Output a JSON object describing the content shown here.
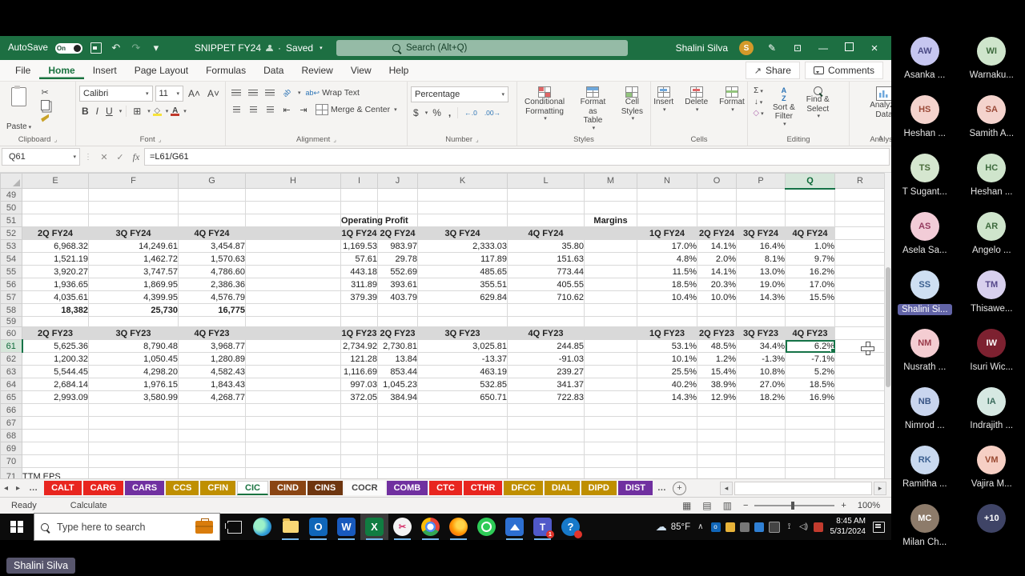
{
  "window": {
    "autosave": "AutoSave",
    "autosave_state": "On",
    "title": "SNIPPET FY24",
    "saved_status": "Saved",
    "search_placeholder": "Search (Alt+Q)",
    "user": "Shalini Silva",
    "user_initial": "S"
  },
  "menu": {
    "tabs": [
      "File",
      "Home",
      "Insert",
      "Page Layout",
      "Formulas",
      "Data",
      "Review",
      "View",
      "Help"
    ],
    "active": "Home",
    "share": "Share",
    "comments": "Comments"
  },
  "ribbon": {
    "paste": "Paste",
    "font_name": "Calibri",
    "font_size": "11",
    "bold": "B",
    "italic": "I",
    "underline": "U",
    "wrap_text": "Wrap Text",
    "merge_center": "Merge & Center",
    "number_format": "Percentage",
    "btn_conditional": "Conditional\nFormatting",
    "btn_format_table": "Format as\nTable",
    "btn_cell_styles": "Cell\nStyles",
    "btn_insert": "Insert",
    "btn_delete": "Delete",
    "btn_format": "Format",
    "btn_sort": "Sort &\nFilter",
    "btn_find": "Find &\nSelect",
    "btn_analyze": "Analyze\nData",
    "grp_clipboard": "Clipboard",
    "grp_font": "Font",
    "grp_alignment": "Alignment",
    "grp_number": "Number",
    "grp_styles": "Styles",
    "grp_cells": "Cells",
    "grp_editing": "Editing",
    "grp_analysis": "Analysis"
  },
  "formula_bar": {
    "name_box": "Q61",
    "formula": "=L61/G61"
  },
  "grid": {
    "columns": [
      "E",
      "F",
      "G",
      "H",
      "I",
      "J",
      "K",
      "L",
      "M",
      "N",
      "O",
      "P",
      "Q",
      "R"
    ],
    "selected_col": "Q",
    "selected_row": "61",
    "rows": [
      {
        "n": "49"
      },
      {
        "n": "50"
      },
      {
        "n": "51",
        "cells": [
          [
            "I",
            "Operating Profit",
            "c"
          ],
          [
            "M",
            "Margins",
            "c"
          ]
        ]
      },
      {
        "n": "52",
        "band": true,
        "cells": [
          [
            "E",
            "2Q FY24"
          ],
          [
            "F",
            "3Q FY24"
          ],
          [
            "G",
            "4Q FY24"
          ],
          [
            "I",
            "1Q FY24"
          ],
          [
            "J",
            "2Q FY24"
          ],
          [
            "K",
            "3Q FY24"
          ],
          [
            "L",
            "4Q FY24"
          ],
          [
            "N",
            "1Q FY24"
          ],
          [
            "O",
            "2Q FY24"
          ],
          [
            "P",
            "3Q FY24"
          ],
          [
            "Q",
            "4Q FY24"
          ]
        ]
      },
      {
        "n": "53",
        "cells": [
          [
            "E",
            "6,968.32"
          ],
          [
            "F",
            "14,249.61"
          ],
          [
            "G",
            "3,454.87"
          ],
          [
            "I",
            "1,169.53"
          ],
          [
            "J",
            "983.97"
          ],
          [
            "K",
            "2,333.03"
          ],
          [
            "L",
            "35.80"
          ],
          [
            "N",
            "17.0%"
          ],
          [
            "O",
            "14.1%"
          ],
          [
            "P",
            "16.4%"
          ],
          [
            "Q",
            "1.0%"
          ]
        ]
      },
      {
        "n": "54",
        "cells": [
          [
            "E",
            "1,521.19"
          ],
          [
            "F",
            "1,462.72"
          ],
          [
            "G",
            "1,570.63"
          ],
          [
            "I",
            "57.61"
          ],
          [
            "J",
            "29.78"
          ],
          [
            "K",
            "117.89"
          ],
          [
            "L",
            "151.63"
          ],
          [
            "N",
            "4.8%"
          ],
          [
            "O",
            "2.0%"
          ],
          [
            "P",
            "8.1%"
          ],
          [
            "Q",
            "9.7%"
          ]
        ]
      },
      {
        "n": "55",
        "cells": [
          [
            "E",
            "3,920.27"
          ],
          [
            "F",
            "3,747.57"
          ],
          [
            "G",
            "4,786.60"
          ],
          [
            "I",
            "443.18"
          ],
          [
            "J",
            "552.69"
          ],
          [
            "K",
            "485.65"
          ],
          [
            "L",
            "773.44"
          ],
          [
            "N",
            "11.5%"
          ],
          [
            "O",
            "14.1%"
          ],
          [
            "P",
            "13.0%"
          ],
          [
            "Q",
            "16.2%"
          ]
        ]
      },
      {
        "n": "56",
        "cells": [
          [
            "E",
            "1,936.65"
          ],
          [
            "F",
            "1,869.95"
          ],
          [
            "G",
            "2,386.36"
          ],
          [
            "I",
            "311.89"
          ],
          [
            "J",
            "393.61"
          ],
          [
            "K",
            "355.51"
          ],
          [
            "L",
            "405.55"
          ],
          [
            "N",
            "18.5%"
          ],
          [
            "O",
            "20.3%"
          ],
          [
            "P",
            "19.0%"
          ],
          [
            "Q",
            "17.0%"
          ]
        ]
      },
      {
        "n": "57",
        "cells": [
          [
            "E",
            "4,035.61"
          ],
          [
            "F",
            "4,399.95"
          ],
          [
            "G",
            "4,576.79"
          ],
          [
            "I",
            "379.39"
          ],
          [
            "J",
            "403.79"
          ],
          [
            "K",
            "629.84"
          ],
          [
            "L",
            "710.62"
          ],
          [
            "N",
            "10.4%"
          ],
          [
            "O",
            "10.0%"
          ],
          [
            "P",
            "14.3%"
          ],
          [
            "Q",
            "15.5%"
          ]
        ]
      },
      {
        "n": "58",
        "bold": true,
        "cells": [
          [
            "E",
            "18,382"
          ],
          [
            "F",
            "25,730"
          ],
          [
            "G",
            "16,775"
          ]
        ]
      },
      {
        "n": "59",
        "h": 10
      },
      {
        "n": "60",
        "band": true,
        "cells": [
          [
            "E",
            "2Q FY23"
          ],
          [
            "F",
            "3Q FY23"
          ],
          [
            "G",
            "4Q FY23"
          ],
          [
            "I",
            "1Q FY23"
          ],
          [
            "J",
            "2Q FY23"
          ],
          [
            "K",
            "3Q FY23"
          ],
          [
            "L",
            "4Q FY23"
          ],
          [
            "N",
            "1Q FY23"
          ],
          [
            "O",
            "2Q FY23"
          ],
          [
            "P",
            "3Q FY23"
          ],
          [
            "Q",
            "4Q FY23"
          ]
        ]
      },
      {
        "n": "61",
        "cells": [
          [
            "E",
            "5,625.36"
          ],
          [
            "F",
            "8,790.48"
          ],
          [
            "G",
            "3,968.77"
          ],
          [
            "I",
            "2,734.92"
          ],
          [
            "J",
            "2,730.81"
          ],
          [
            "K",
            "3,025.81"
          ],
          [
            "L",
            "244.85"
          ],
          [
            "N",
            "53.1%"
          ],
          [
            "O",
            "48.5%"
          ],
          [
            "P",
            "34.4%"
          ],
          [
            "Q",
            "6.2%"
          ]
        ]
      },
      {
        "n": "62",
        "cells": [
          [
            "E",
            "1,200.32"
          ],
          [
            "F",
            "1,050.45"
          ],
          [
            "G",
            "1,280.89"
          ],
          [
            "I",
            "121.28"
          ],
          [
            "J",
            "13.84"
          ],
          [
            "K",
            "-13.37"
          ],
          [
            "L",
            "-91.03"
          ],
          [
            "N",
            "10.1%"
          ],
          [
            "O",
            "1.2%"
          ],
          [
            "P",
            "-1.3%"
          ],
          [
            "Q",
            "-7.1%"
          ]
        ]
      },
      {
        "n": "63",
        "cells": [
          [
            "E",
            "5,544.45"
          ],
          [
            "F",
            "4,298.20"
          ],
          [
            "G",
            "4,582.43"
          ],
          [
            "I",
            "1,116.69"
          ],
          [
            "J",
            "853.44"
          ],
          [
            "K",
            "463.19"
          ],
          [
            "L",
            "239.27"
          ],
          [
            "N",
            "25.5%"
          ],
          [
            "O",
            "15.4%"
          ],
          [
            "P",
            "10.8%"
          ],
          [
            "Q",
            "5.2%"
          ]
        ]
      },
      {
        "n": "64",
        "cells": [
          [
            "E",
            "2,684.14"
          ],
          [
            "F",
            "1,976.15"
          ],
          [
            "G",
            "1,843.43"
          ],
          [
            "I",
            "997.03"
          ],
          [
            "J",
            "1,045.23"
          ],
          [
            "K",
            "532.85"
          ],
          [
            "L",
            "341.37"
          ],
          [
            "N",
            "40.2%"
          ],
          [
            "O",
            "38.9%"
          ],
          [
            "P",
            "27.0%"
          ],
          [
            "Q",
            "18.5%"
          ]
        ]
      },
      {
        "n": "65",
        "cells": [
          [
            "E",
            "2,993.09"
          ],
          [
            "F",
            "3,580.99"
          ],
          [
            "G",
            "4,268.77"
          ],
          [
            "I",
            "372.05"
          ],
          [
            "J",
            "384.94"
          ],
          [
            "K",
            "650.71"
          ],
          [
            "L",
            "722.83"
          ],
          [
            "N",
            "14.3%"
          ],
          [
            "O",
            "12.9%"
          ],
          [
            "P",
            "18.2%"
          ],
          [
            "Q",
            "16.9%"
          ]
        ]
      },
      {
        "n": "66"
      },
      {
        "n": "67"
      },
      {
        "n": "68"
      },
      {
        "n": "69"
      },
      {
        "n": "70"
      },
      {
        "n": "71",
        "h": 22,
        "cells": [
          [
            "E",
            "TTM EPS",
            "l"
          ]
        ]
      }
    ]
  },
  "sheet_tabs": {
    "nav_ellipsis": "…",
    "tabs": [
      {
        "label": "CALT",
        "bg": "#e8251f",
        "fg": "#ffffff"
      },
      {
        "label": "CARG",
        "bg": "#e8251f",
        "fg": "#ffffff"
      },
      {
        "label": "CARS",
        "bg": "#7030a0",
        "fg": "#ffffff"
      },
      {
        "label": "CCS",
        "bg": "#bf8f00",
        "fg": "#ffffff"
      },
      {
        "label": "CFIN",
        "bg": "#bf8f00",
        "fg": "#ffffff"
      },
      {
        "label": "CIC",
        "active": true
      },
      {
        "label": "CIND",
        "bg": "#8a4513",
        "fg": "#ffffff"
      },
      {
        "label": "CINS",
        "bg": "#6e3610",
        "fg": "#ffffff"
      },
      {
        "label": "COCR",
        "bg": "#fbfbfb",
        "fg": "#444444"
      },
      {
        "label": "COMB",
        "bg": "#7030a0",
        "fg": "#ffffff"
      },
      {
        "label": "CTC",
        "bg": "#e8251f",
        "fg": "#ffffff"
      },
      {
        "label": "CTHR",
        "bg": "#e8251f",
        "fg": "#ffffff"
      },
      {
        "label": "DFCC",
        "bg": "#bf8f00",
        "fg": "#ffffff"
      },
      {
        "label": "DIAL",
        "bg": "#bf8f00",
        "fg": "#ffffff"
      },
      {
        "label": "DIPD",
        "bg": "#bf8f00",
        "fg": "#ffffff"
      },
      {
        "label": "DIST",
        "bg": "#7030a0",
        "fg": "#ffffff"
      }
    ]
  },
  "status_bar": {
    "ready": "Ready",
    "calculate": "Calculate",
    "zoom": "100%"
  },
  "taskbar": {
    "search_placeholder": "Type here to search",
    "temp": "85°F",
    "time": "8:45 AM",
    "date": "5/31/2024"
  },
  "meeting": {
    "presenter_label": "Shalini Silva",
    "participants": [
      {
        "initials": "AW",
        "name": "Asanka ...",
        "bg": "#c6c6f0",
        "fg": "#4a4a85"
      },
      {
        "initials": "WI",
        "name": "Warnaku...",
        "bg": "#cfe5cc",
        "fg": "#3e6b3e"
      },
      {
        "initials": "HS",
        "name": "Heshan ...",
        "bg": "#f4d3cd",
        "fg": "#9a4a38"
      },
      {
        "initials": "SA",
        "name": "Samith A...",
        "bg": "#f4d3cd",
        "fg": "#9a4a38"
      },
      {
        "initials": "TS",
        "name": "T Sugant...",
        "bg": "#d5e6cf",
        "fg": "#4a6b3a"
      },
      {
        "initials": "HC",
        "name": "Heshan ...",
        "bg": "#cfe5cc",
        "fg": "#3e6b3e"
      },
      {
        "initials": "AS",
        "name": "Asela Sa...",
        "bg": "#f2ccd7",
        "fg": "#943a5e"
      },
      {
        "initials": "AR",
        "name": "Angelo ...",
        "bg": "#cfe5cc",
        "fg": "#3e6b3e"
      },
      {
        "initials": "SS",
        "name": "Shalini Si...",
        "bg": "#cedff2",
        "fg": "#3a5f8f",
        "highlight": true
      },
      {
        "initials": "TM",
        "name": "Thisawe...",
        "bg": "#d8d0ee",
        "fg": "#55478a"
      },
      {
        "initials": "NM",
        "name": "Nusrath ...",
        "bg": "#f4cdd2",
        "fg": "#9a3a4a"
      },
      {
        "initials": "IW",
        "name": "Isuri Wic...",
        "bg": "#7d2130",
        "fg": "#ffffff"
      },
      {
        "initials": "NB",
        "name": "Nimrod ...",
        "bg": "#c9d5ee",
        "fg": "#3a5585"
      },
      {
        "initials": "IA",
        "name": "Indrajith ...",
        "bg": "#d6e8e2",
        "fg": "#3a6b5c"
      },
      {
        "initials": "RK",
        "name": "Ramitha ...",
        "bg": "#c9d9ef",
        "fg": "#3a5f8f"
      },
      {
        "initials": "VM",
        "name": "Vajira M...",
        "bg": "#f6cfc4",
        "fg": "#9a4a32"
      },
      {
        "initials": "MC",
        "name": "Milan Ch...",
        "bg": "#8d7b6a",
        "fg": "#ffffff",
        "photo": true
      },
      {
        "initials": "+10",
        "name": "",
        "bg": "#3f4466",
        "fg": "#ffffff",
        "overflow": true
      }
    ]
  }
}
